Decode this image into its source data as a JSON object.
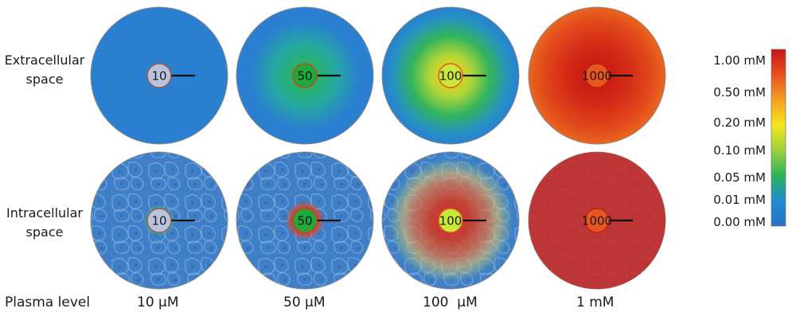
{
  "row_labels": {
    "extracellular_line1": "Extracellular",
    "extracellular_line2": "space",
    "intracellular_line1": "Intracellular",
    "intracellular_line2": "space"
  },
  "plasma_label": "Plasma level",
  "columns": [
    {
      "plasma": "10 µM",
      "value_label": "10",
      "core_color": "#b9c3df",
      "core_border": "#9a5a3a",
      "extra": {
        "center_color": "#2a7fd0",
        "edge_color": "#2a7fd0"
      },
      "intra": {
        "spread": 0.16,
        "peak_color": "#39c84a"
      }
    },
    {
      "plasma": "50 µM",
      "value_label": "50",
      "core_color": "#1fa83c",
      "core_border": "#c44a1e",
      "extra": {
        "center_color": "#2cb35a",
        "edge_color": "#2a7fd0"
      },
      "intra": {
        "spread": 0.23,
        "peak_color": "#d8301e"
      }
    },
    {
      "plasma": "100  µM",
      "value_label": "100",
      "core_color": "#c8e83a",
      "core_border": "#e05a1e",
      "extra": {
        "center_color": "#f0d21e",
        "edge_color": "#2a7fd0"
      },
      "intra": {
        "spread": 0.66,
        "peak_color": "#d42a1c"
      }
    },
    {
      "plasma": "1 mM",
      "value_label": "1000",
      "core_color": "#e8551e",
      "core_border": "#b82414",
      "extra": {
        "center_color": "#c41414",
        "edge_color": "#e8601e"
      },
      "intra": {
        "spread": 1.0,
        "peak_color": "#c8302a"
      }
    }
  ],
  "color_scale": {
    "ticks": [
      "1.00 mM",
      "0.50 mM",
      "0.20 mM",
      "0.10 mM",
      "0.05 mM",
      "0.01 mM",
      "0.00 mM"
    ],
    "colors_top_to_bottom": [
      "#c81414",
      "#e8501e",
      "#f5a01e",
      "#f5e61e",
      "#9cd23c",
      "#2bb45a",
      "#1e8cd2",
      "#2a6fc8"
    ]
  }
}
